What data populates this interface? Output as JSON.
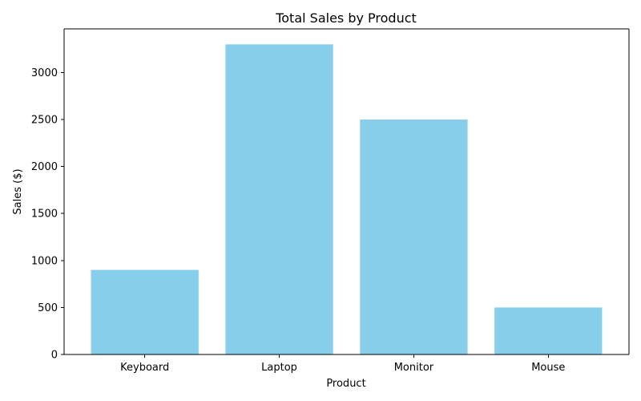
{
  "chart_data": {
    "type": "bar",
    "title": "Total Sales by Product",
    "xlabel": "Product",
    "ylabel": "Sales ($)",
    "categories": [
      "Keyboard",
      "Laptop",
      "Monitor",
      "Mouse"
    ],
    "values": [
      900,
      3300,
      2500,
      500
    ],
    "ylim": [
      0,
      3465
    ],
    "yticks": [
      0,
      500,
      1000,
      1500,
      2000,
      2500,
      3000
    ],
    "bar_color": "#87CEEB",
    "grid": false,
    "legend": "none"
  }
}
